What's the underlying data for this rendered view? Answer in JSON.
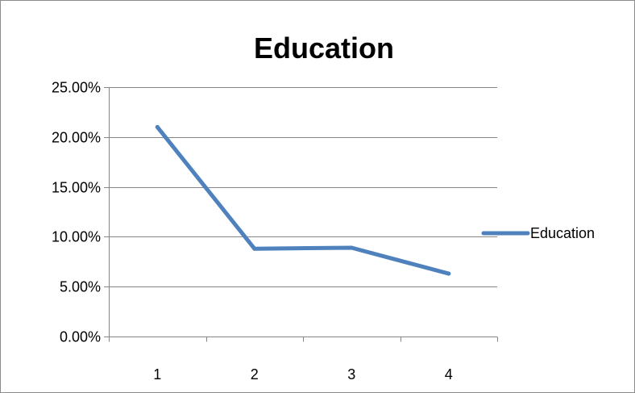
{
  "chart_data": {
    "type": "line",
    "title": "Education",
    "xlabel": "",
    "ylabel": "",
    "categories": [
      "1",
      "2",
      "3",
      "4"
    ],
    "series": [
      {
        "name": "Education",
        "values": [
          0.21,
          0.088,
          0.089,
          0.063
        ],
        "color": "#4f81bd"
      }
    ],
    "ylim": [
      0,
      0.25
    ],
    "y_ticks": [
      0,
      0.05,
      0.1,
      0.15,
      0.2,
      0.25
    ],
    "y_tick_labels": [
      "0.00%",
      "5.00%",
      "10.00%",
      "15.00%",
      "20.00%",
      "25.00%"
    ],
    "grid": true,
    "legend_position": "right",
    "gridline_color": "#868686",
    "axis_color": "#868686"
  }
}
